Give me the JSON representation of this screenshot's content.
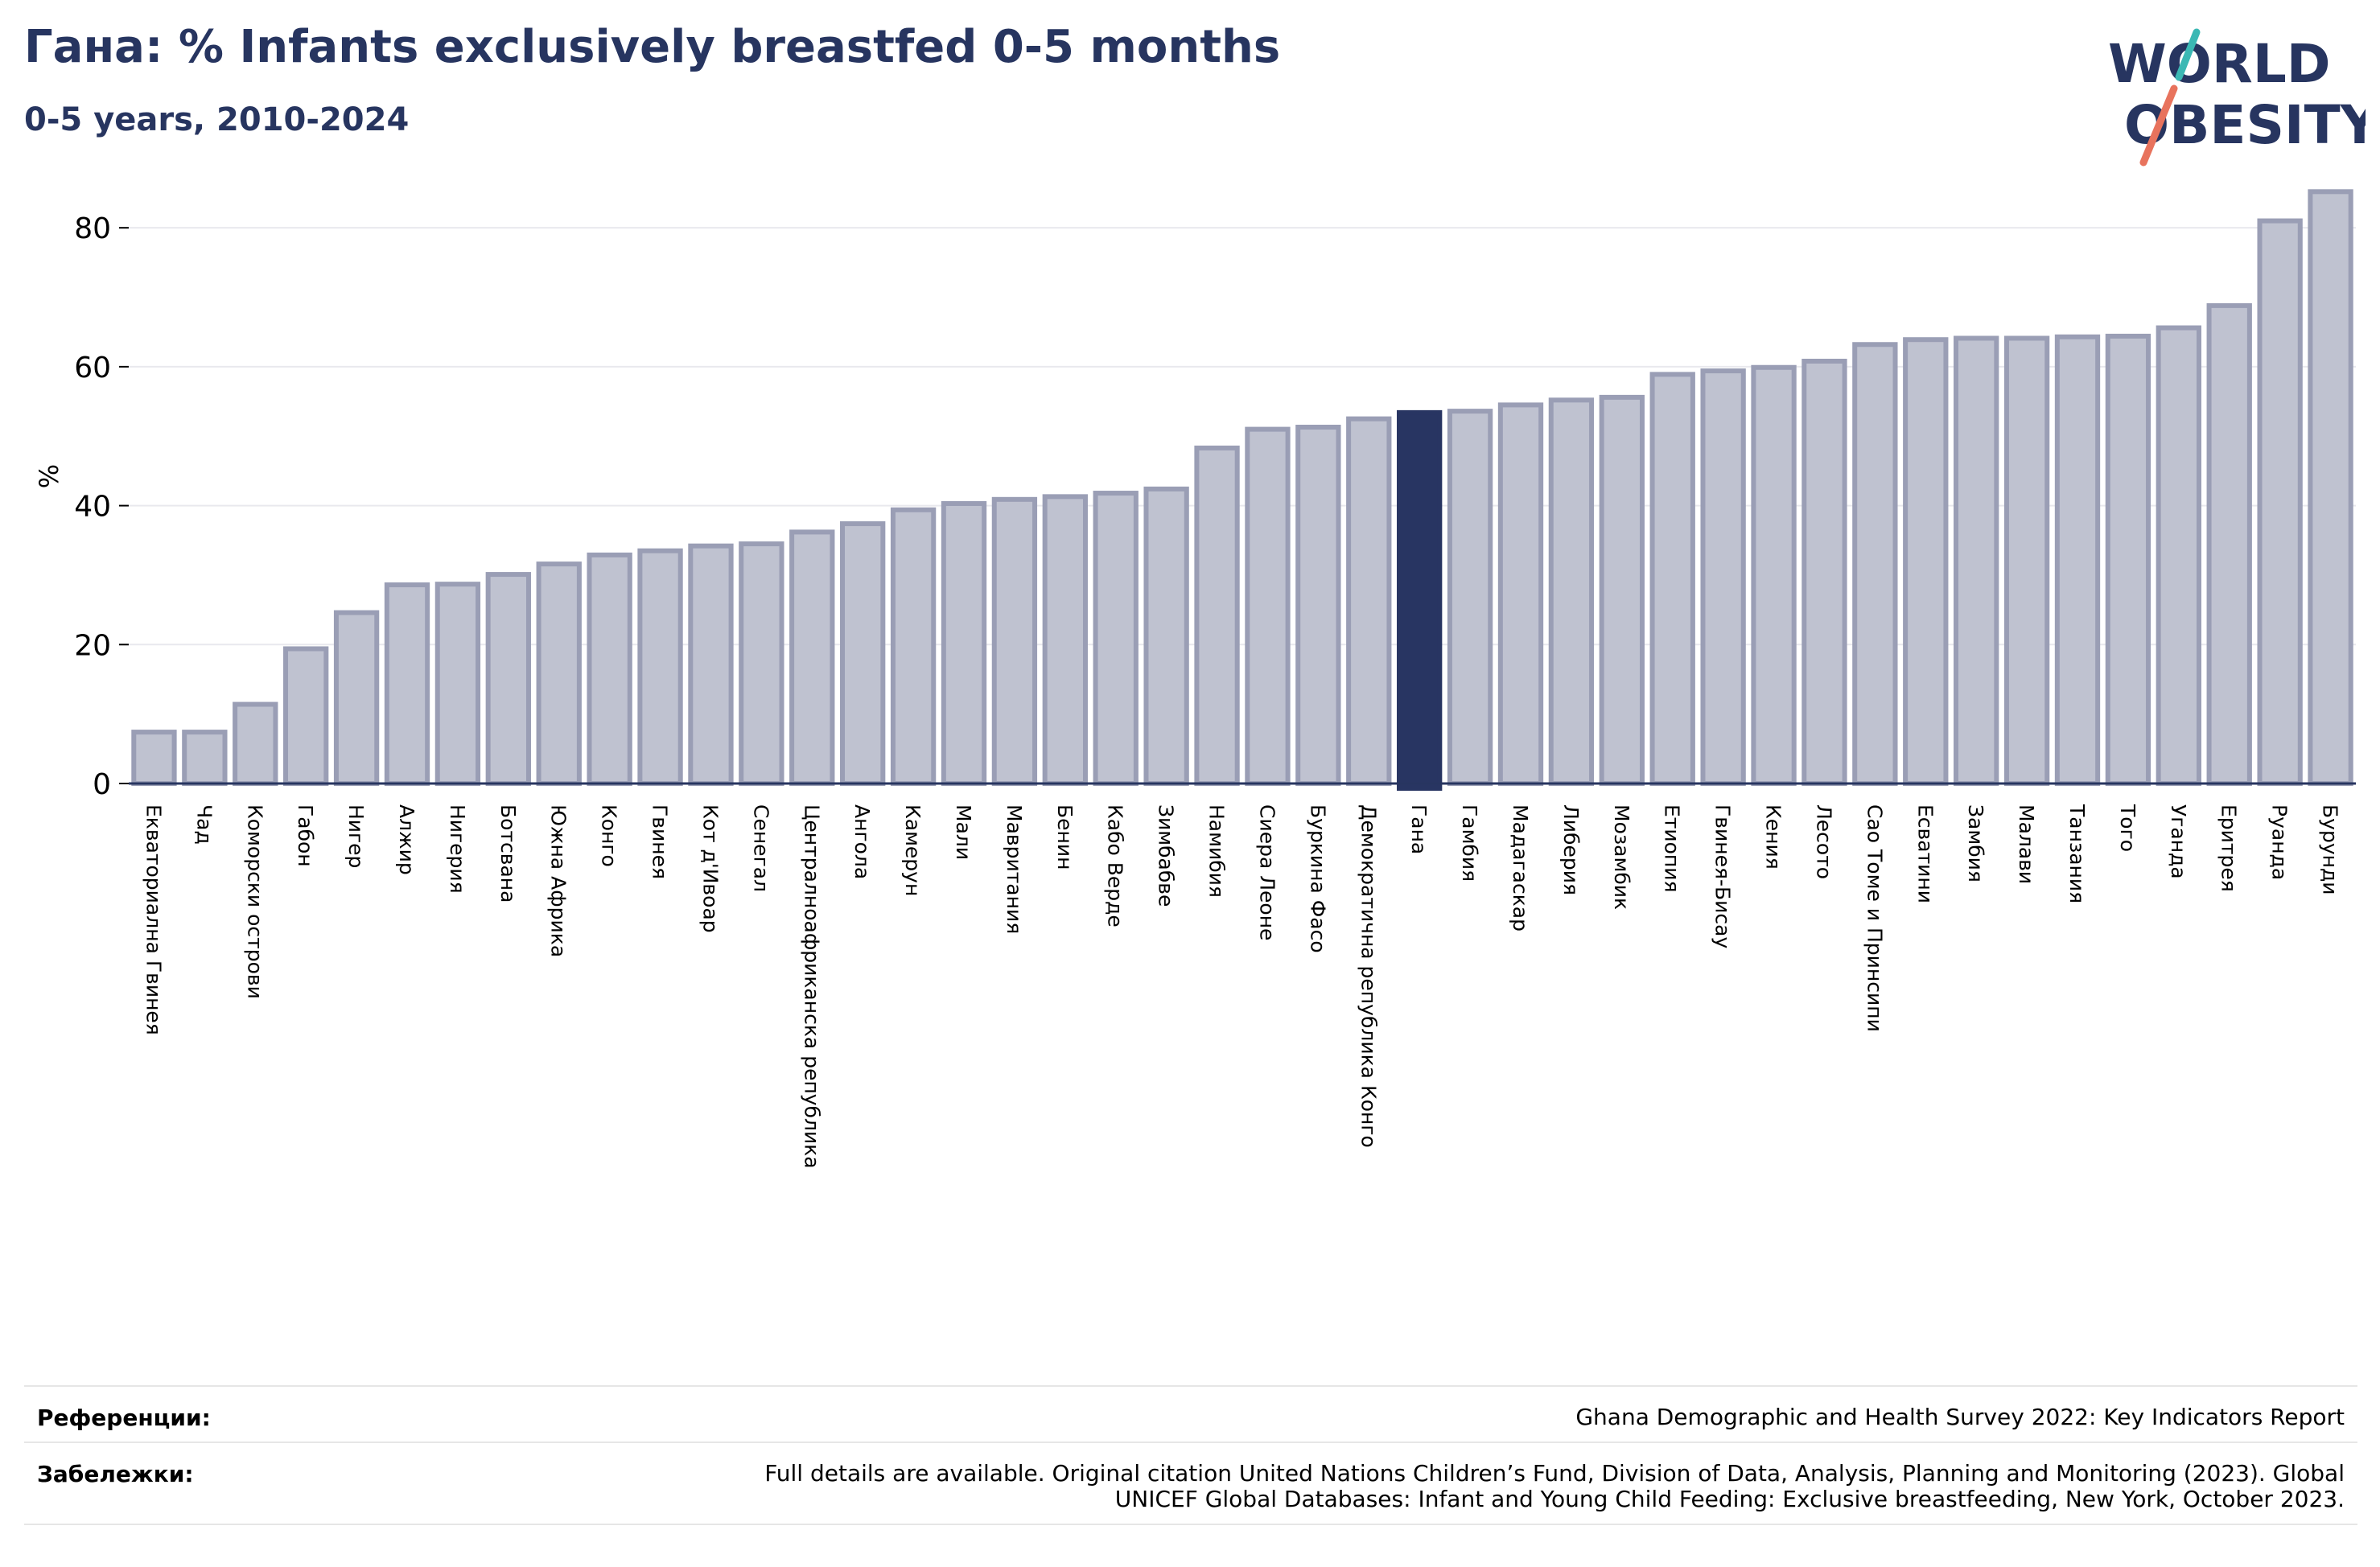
{
  "header": {
    "title": "Гана: % Infants exclusively breastfed 0-5 months",
    "subtitle": "0-5 years, 2010-2024"
  },
  "logo": {
    "line1": "WORLD",
    "line2": "OBESITY"
  },
  "colors": {
    "bar_fill": "#bfc2d0",
    "bar_stroke": "#9a9eb5",
    "highlight": "#283562",
    "title": "#273560",
    "grid": "#e9e9ee",
    "logo_teal": "#3bb8b4",
    "logo_orange": "#e8735d"
  },
  "chart_data": {
    "type": "bar",
    "ylabel": "%",
    "ylim": [
      0,
      85
    ],
    "yticks": [
      0,
      20,
      40,
      60,
      80
    ],
    "grid": true,
    "highlight": "Гана",
    "categories": [
      "Екваториална Гвинея",
      "Чад",
      "Коморски острови",
      "Габон",
      "Нигер",
      "Алжир",
      "Нигерия",
      "Ботсвана",
      "Южна Африка",
      "Конго",
      "Гвинея",
      "Кот д'Ивоар",
      "Сенегал",
      "Централноафриканска република",
      "Ангола",
      "Камерун",
      "Мали",
      "Мавритания",
      "Бенин",
      "Кабо Верде",
      "Зимбабве",
      "Намибия",
      "Сиера Леоне",
      "Буркина Фасо",
      "Демократична република Конго",
      "Гана",
      "Гамбия",
      "Мадагаскар",
      "Либерия",
      "Мозамбик",
      "Етиопия",
      "Гвинея-Бисау",
      "Кения",
      "Лесото",
      "Сао Томе и Принсипи",
      "Есватини",
      "Замбия",
      "Малави",
      "Танзания",
      "Того",
      "Уганда",
      "Еритрея",
      "Руанда",
      "Бурунди"
    ],
    "values": [
      7.4,
      7.4,
      11.4,
      19.4,
      24.6,
      28.6,
      28.7,
      30.1,
      31.6,
      32.9,
      33.5,
      34.2,
      34.5,
      36.2,
      37.4,
      39.4,
      40.3,
      40.9,
      41.3,
      41.8,
      42.4,
      48.3,
      51.0,
      51.3,
      52.5,
      53.4,
      53.6,
      54.5,
      55.2,
      55.6,
      58.9,
      59.4,
      59.9,
      60.8,
      63.2,
      63.9,
      64.1,
      64.1,
      64.3,
      64.4,
      65.6,
      68.8,
      81.0,
      85.2
    ]
  },
  "footer": {
    "references_label": "Референции:",
    "references_text": "Ghana Demographic and Health Survey 2022: Key Indicators Report",
    "notes_label": "Забележки:",
    "notes_line1": "Full details are available. Original citation United Nations Children’s Fund, Division of Data, Analysis, Planning and Monitoring (2023). Global",
    "notes_line2": "UNICEF Global Databases: Infant and Young Child Feeding: Exclusive breastfeeding, New York, October 2023."
  }
}
